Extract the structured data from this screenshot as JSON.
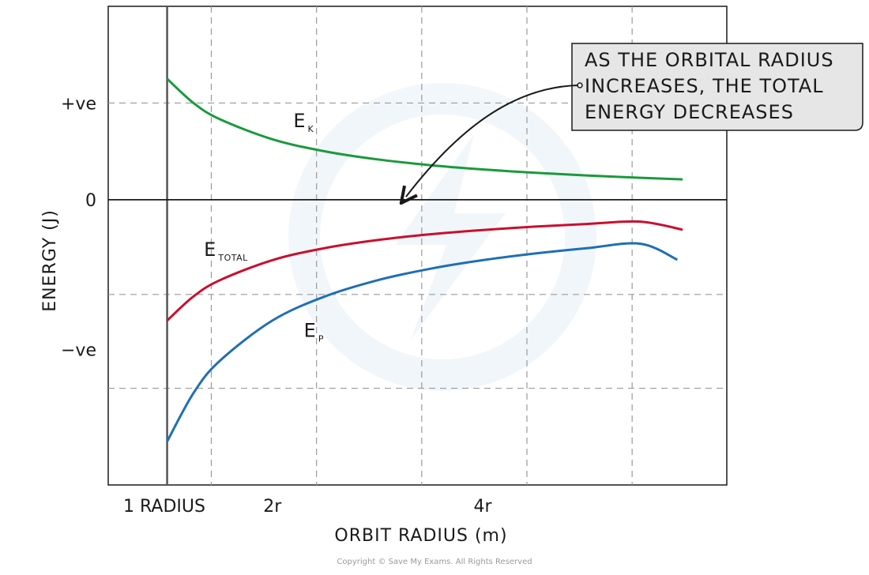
{
  "chart_data": {
    "type": "line",
    "xlabel": "ORBIT RADIUS (m)",
    "ylabel": "ENERGY (J)",
    "x_ticks": [
      {
        "value": 1,
        "label": "1 RADIUS"
      },
      {
        "value": 2,
        "label": "2r"
      },
      {
        "value": 4,
        "label": "4r"
      }
    ],
    "y_ticks": [
      {
        "value": 1,
        "label": "+ve"
      },
      {
        "value": 0,
        "label": "0"
      },
      {
        "value": -1.55,
        "label": "−ve"
      }
    ],
    "xlim": [
      0.44,
      6.32
    ],
    "ylim": [
      -2.95,
      2.0
    ],
    "x_gridlines": [
      1.42,
      2.42,
      3.42,
      4.42,
      5.42
    ],
    "y_gridlines": [
      1,
      -0.98,
      -1.95
    ],
    "grid": true,
    "series": [
      {
        "name": "E",
        "subscript": "K",
        "color": "#1a9a3c",
        "label_at": [
          2.2,
          0.75
        ],
        "x": [
          1.0,
          1.25,
          1.5,
          2.0,
          2.5,
          3.0,
          3.5,
          4.0,
          4.5,
          5.0,
          5.5,
          5.9
        ],
        "y": [
          1.25,
          1.0,
          0.833,
          0.625,
          0.5,
          0.417,
          0.357,
          0.313,
          0.278,
          0.25,
          0.227,
          0.21
        ]
      },
      {
        "name": "E",
        "subscript": "TOTAL",
        "color": "#c8102e",
        "label_at": [
          1.35,
          -0.58
        ],
        "x": [
          1.0,
          1.25,
          1.5,
          2.0,
          2.5,
          3.0,
          3.5,
          4.0,
          4.5,
          5.0,
          5.5,
          5.9
        ],
        "y": [
          -1.25,
          -1.0,
          -0.833,
          -0.625,
          -0.5,
          -0.417,
          -0.357,
          -0.313,
          -0.278,
          -0.25,
          -0.227,
          -0.31
        ]
      },
      {
        "name": "E",
        "subscript": "P",
        "color": "#1f6fb5",
        "label_at": [
          2.3,
          -1.42
        ],
        "x": [
          1.0,
          1.25,
          1.5,
          2.0,
          2.5,
          3.0,
          3.5,
          4.0,
          4.5,
          5.0,
          5.5,
          5.85
        ],
        "y": [
          -2.5,
          -2.0,
          -1.667,
          -1.25,
          -1.0,
          -0.833,
          -0.714,
          -0.625,
          -0.556,
          -0.5,
          -0.455,
          -0.62
        ]
      }
    ]
  },
  "callout": {
    "lines": [
      "AS THE ORBITAL RADIUS",
      "INCREASES, THE TOTAL",
      "ENERGY DECREASES"
    ],
    "arrow_target": [
      3.27,
      0.03
    ]
  },
  "copyright": "Copyright © Save My Exams. All Rights Reserved"
}
